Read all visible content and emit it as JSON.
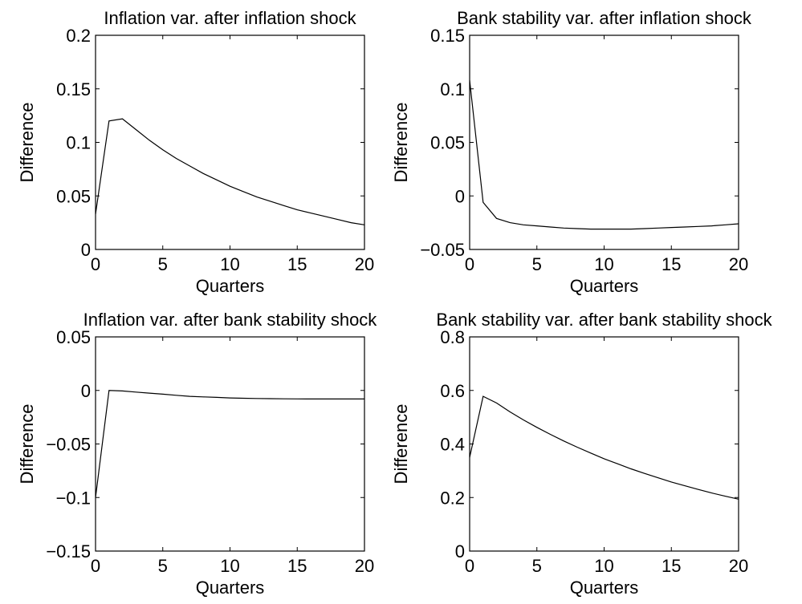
{
  "chart_data": [
    {
      "type": "line",
      "title": "Inflation var. after inflation shock",
      "xlabel": "Quarters",
      "ylabel": "Difference",
      "xlim": [
        0,
        20
      ],
      "ylim": [
        0,
        0.2
      ],
      "xticks": [
        "0",
        "5",
        "10",
        "15",
        "20"
      ],
      "yticks": [
        "0",
        "0.05",
        "0.1",
        "0.15",
        "0.2"
      ],
      "grid": false,
      "x": [
        0,
        1,
        2,
        3,
        4,
        5,
        6,
        7,
        8,
        9,
        10,
        11,
        12,
        13,
        14,
        15,
        16,
        17,
        18,
        19,
        20
      ],
      "y": [
        0.033,
        0.12,
        0.122,
        0.112,
        0.102,
        0.093,
        0.085,
        0.078,
        0.071,
        0.065,
        0.059,
        0.054,
        0.049,
        0.045,
        0.041,
        0.037,
        0.034,
        0.031,
        0.028,
        0.025,
        0.023
      ]
    },
    {
      "type": "line",
      "title": "Bank stability var. after inflation shock",
      "xlabel": "Quarters",
      "ylabel": "Difference",
      "xlim": [
        0,
        20
      ],
      "ylim": [
        -0.05,
        0.15
      ],
      "xticks": [
        "0",
        "5",
        "10",
        "15",
        "20"
      ],
      "yticks": [
        "−0.05",
        "0",
        "0.05",
        "0.1",
        "0.15"
      ],
      "grid": false,
      "x": [
        0,
        1,
        2,
        3,
        4,
        5,
        6,
        7,
        8,
        9,
        10,
        11,
        12,
        13,
        14,
        15,
        16,
        17,
        18,
        19,
        20
      ],
      "y": [
        0.108,
        -0.006,
        -0.021,
        -0.025,
        -0.027,
        -0.028,
        -0.029,
        -0.03,
        -0.0305,
        -0.031,
        -0.031,
        -0.031,
        -0.031,
        -0.0305,
        -0.03,
        -0.0295,
        -0.029,
        -0.0285,
        -0.028,
        -0.027,
        -0.026
      ]
    },
    {
      "type": "line",
      "title": "Inflation var. after bank stability shock",
      "xlabel": "Quarters",
      "ylabel": "Difference",
      "xlim": [
        0,
        20
      ],
      "ylim": [
        -0.15,
        0.05
      ],
      "xticks": [
        "0",
        "5",
        "10",
        "15",
        "20"
      ],
      "yticks": [
        "−0.15",
        "−0.1",
        "−0.05",
        "0",
        "0.05"
      ],
      "grid": false,
      "x": [
        0,
        1,
        2,
        3,
        4,
        5,
        6,
        7,
        8,
        9,
        10,
        11,
        12,
        13,
        14,
        15,
        16,
        17,
        18,
        19,
        20
      ],
      "y": [
        -0.1,
        0.0,
        -0.0005,
        -0.0015,
        -0.0025,
        -0.0035,
        -0.0045,
        -0.0055,
        -0.006,
        -0.0065,
        -0.007,
        -0.0073,
        -0.0075,
        -0.0077,
        -0.0078,
        -0.0079,
        -0.008,
        -0.008,
        -0.008,
        -0.008,
        -0.008
      ]
    },
    {
      "type": "line",
      "title": "Bank stability var. after bank stability shock",
      "xlabel": "Quarters",
      "ylabel": "Difference",
      "xlim": [
        0,
        20
      ],
      "ylim": [
        0,
        0.8
      ],
      "xticks": [
        "0",
        "5",
        "10",
        "15",
        "20"
      ],
      "yticks": [
        "0",
        "0.2",
        "0.4",
        "0.6",
        "0.8"
      ],
      "grid": false,
      "x": [
        0,
        1,
        2,
        3,
        4,
        5,
        6,
        7,
        8,
        9,
        10,
        11,
        12,
        13,
        14,
        15,
        16,
        17,
        18,
        19,
        20
      ],
      "y": [
        0.35,
        0.578,
        0.553,
        0.52,
        0.49,
        0.462,
        0.436,
        0.411,
        0.388,
        0.366,
        0.345,
        0.326,
        0.307,
        0.29,
        0.274,
        0.258,
        0.244,
        0.23,
        0.217,
        0.205,
        0.194
      ]
    }
  ]
}
